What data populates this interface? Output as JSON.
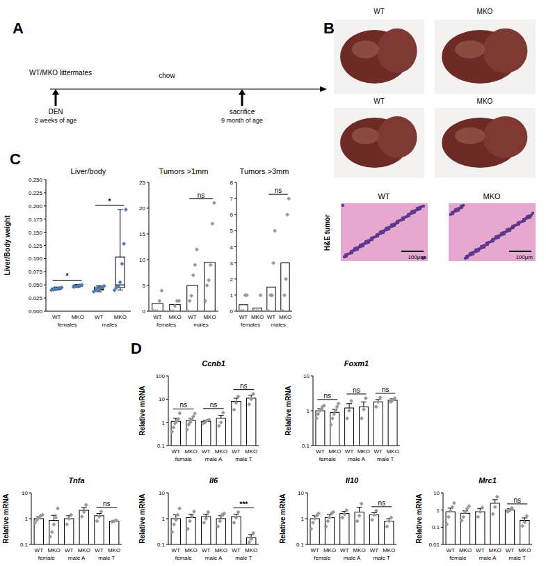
{
  "panel_labels": [
    "A",
    "B",
    "C",
    "D"
  ],
  "diagram": {
    "timeline": {
      "group_label": "WT/MKO littermates",
      "diet": "chow",
      "events": [
        {
          "label": "DEN",
          "time": "2 weeks of age"
        },
        {
          "label": "sacrifice",
          "time": "9 month of age"
        }
      ]
    }
  },
  "photos": {
    "liver": {
      "labels": [
        "WT",
        "MKO",
        "WT",
        "MKO"
      ]
    },
    "histology": {
      "row_label": "H&E tumor",
      "labels": [
        "WT",
        "MKO"
      ],
      "scale_bars": [
        "100μm",
        "100μm"
      ]
    }
  },
  "chart_data": [
    {
      "type": "box",
      "title": "Liver/body",
      "y_label": "Liver/Body weight",
      "categories": [
        "WT",
        "MKO",
        "WT",
        "MKO"
      ],
      "groups": [
        "females",
        "males"
      ],
      "significance": [
        "*",
        "*"
      ],
      "ylim": [
        0,
        0.25
      ],
      "yticks": [
        {
          "value": 0,
          "label": "0.000"
        },
        {
          "value": 0.025,
          "label": "0.025"
        },
        {
          "value": 0.05,
          "label": "0.050"
        },
        {
          "value": 0.075,
          "label": "0.075"
        },
        {
          "value": 0.1,
          "label": "0.100"
        },
        {
          "value": 0.125,
          "label": "0.125"
        },
        {
          "value": 0.15,
          "label": "0.150"
        },
        {
          "value": 0.175,
          "label": "0.175"
        },
        {
          "value": 0.2,
          "label": "0.200"
        },
        {
          "value": 0.225,
          "label": "0.225"
        },
        {
          "value": 0.25,
          "label": "0.250"
        }
      ],
      "boxes": [
        {
          "min": 0.04,
          "q1": 0.041,
          "median": 0.042,
          "q3": 0.044,
          "max": 0.046
        },
        {
          "min": 0.045,
          "q1": 0.047,
          "median": 0.048,
          "q3": 0.05,
          "max": 0.051
        },
        {
          "min": 0.037,
          "q1": 0.04,
          "median": 0.042,
          "q3": 0.046,
          "max": 0.048
        },
        {
          "min": 0.04,
          "q1": 0.045,
          "median": 0.05,
          "q3": 0.103,
          "max": 0.193
        }
      ],
      "points": [
        [
          0.04,
          0.041,
          0.042,
          0.043,
          0.044,
          0.045
        ],
        [
          0.046,
          0.047,
          0.048,
          0.049,
          0.05
        ],
        [
          0.037,
          0.04,
          0.042,
          0.044,
          0.046,
          0.048
        ],
        [
          0.04,
          0.045,
          0.048,
          0.055,
          0.09,
          0.128,
          0.193
        ]
      ],
      "color": "#4a7ebb",
      "marker": "diamond"
    },
    {
      "type": "bar",
      "title": "Tumors >1mm",
      "categories": [
        "WT",
        "MKO",
        "WT",
        "MKO"
      ],
      "groups": [
        "females",
        "males"
      ],
      "significance": [
        null,
        "ns"
      ],
      "ylim": [
        0,
        25
      ],
      "yticks": [
        0,
        5,
        10,
        15,
        20,
        25
      ],
      "values": [
        1.5,
        1.3,
        5,
        9.5
      ],
      "points": [
        [
          0,
          0,
          0,
          2,
          4
        ],
        [
          0,
          0,
          1,
          2,
          2
        ],
        [
          0,
          2,
          3,
          7,
          9,
          12
        ],
        [
          2,
          5,
          6,
          9,
          17,
          21
        ]
      ],
      "color": "#ffffff",
      "marker": "diamond"
    },
    {
      "type": "bar",
      "title": "Tumors >3mm",
      "categories": [
        "WT",
        "MKO",
        "WT",
        "MKO"
      ],
      "groups": [
        "females",
        "males"
      ],
      "significance": [
        null,
        "ns"
      ],
      "ylim": [
        0,
        8
      ],
      "yticks": [
        0,
        1,
        2,
        3,
        4,
        5,
        6,
        7,
        8
      ],
      "values": [
        0.4,
        0.2,
        1.5,
        3
      ],
      "points": [
        [
          0,
          0,
          0,
          1,
          1
        ],
        [
          0,
          0,
          0,
          1
        ],
        [
          0,
          0,
          1,
          1,
          3,
          5
        ],
        [
          0,
          0,
          1,
          2,
          6,
          7
        ]
      ],
      "color": "#ffffff",
      "marker": "diamond"
    },
    {
      "type": "bar",
      "title": "Ccnb1",
      "y_label": "Relative mRNA",
      "log": "y",
      "categories": [
        "WT",
        "MKO",
        "WT",
        "MKO",
        "WT",
        "MKO"
      ],
      "groups": [
        "female",
        "male A",
        "male T"
      ],
      "significance": [
        "ns",
        "ns",
        "ns"
      ],
      "ylim": [
        0.1,
        100
      ],
      "yticks": [
        0.1,
        1,
        10,
        100
      ],
      "values": [
        1.1,
        1.2,
        1.1,
        1.5,
        8,
        11
      ],
      "errors": [
        0.4,
        0.3,
        0.15,
        0.5,
        3,
        4
      ],
      "points": [
        [
          0.4,
          0.6,
          0.9,
          1.1,
          1.4,
          2.5
        ],
        [
          0.5,
          0.8,
          1.0,
          1.3,
          1.8,
          2.4
        ],
        [
          0.9,
          1.0,
          1.2,
          1.3
        ],
        [
          0.7,
          1.0,
          2.6
        ],
        [
          3.5,
          7,
          13
        ],
        [
          6,
          10,
          17
        ]
      ],
      "color": "#ffffff",
      "marker": "diamond"
    },
    {
      "type": "bar",
      "title": "Foxm1",
      "y_label": "Relative mRNA",
      "log": "y",
      "categories": [
        "WT",
        "MKO",
        "WT",
        "MKO",
        "WT",
        "MKO"
      ],
      "groups": [
        "female",
        "male A",
        "male T"
      ],
      "significance": [
        "ns",
        "ns",
        "ns"
      ],
      "ylim": [
        0.1,
        10
      ],
      "yticks": [
        0.1,
        1,
        10
      ],
      "values": [
        1.0,
        0.9,
        1.2,
        1.3,
        1.8,
        2.0
      ],
      "errors": [
        0.15,
        0.2,
        0.4,
        0.5,
        0.3,
        0.2
      ],
      "points": [
        [
          0.6,
          0.8,
          1.0,
          1.1,
          1.3,
          1.4
        ],
        [
          0.4,
          0.6,
          0.8,
          1.0,
          1.3,
          1.6
        ],
        [
          0.6,
          1.0,
          1.9
        ],
        [
          0.6,
          1.1,
          2.3
        ],
        [
          1.3,
          1.8,
          2.4
        ],
        [
          1.8,
          2.0,
          2.3
        ]
      ],
      "color": "#ffffff",
      "marker": "diamond"
    },
    {
      "type": "bar",
      "title": "Tnfa",
      "y_label": "Relative mRNA",
      "log": "y",
      "categories": [
        "WT",
        "MKO",
        "WT",
        "MKO",
        "WT",
        "MKO"
      ],
      "groups": [
        "female",
        "male A",
        "male T"
      ],
      "significance": [
        null,
        null,
        "ns"
      ],
      "ylim": [
        0.1,
        10
      ],
      "yticks": [
        0.1,
        1,
        10
      ],
      "values": [
        1.0,
        0.85,
        1.0,
        2.1,
        1.3,
        0.8
      ],
      "errors": [
        0.2,
        0.5,
        0.3,
        0.6,
        0.3,
        0.05
      ],
      "points": [
        [
          0.7,
          0.9,
          1.1,
          1.3,
          1.4
        ],
        [
          0.2,
          0.3,
          0.6,
          1.1,
          2.5
        ],
        [
          0.6,
          1.0,
          1.4
        ],
        [
          1.2,
          1.8,
          3.4
        ],
        [
          0.8,
          1.2,
          1.9
        ],
        [
          0.75,
          0.8,
          0.85
        ]
      ],
      "color": "#ffffff",
      "marker": "diamond"
    },
    {
      "type": "bar",
      "title": "Il6",
      "y_label": "Relative mRNA",
      "log": "y",
      "categories": [
        "WT",
        "MKO",
        "WT",
        "MKO",
        "WT",
        "MKO"
      ],
      "groups": [
        "female",
        "male A",
        "male T"
      ],
      "significance": [
        null,
        null,
        "***"
      ],
      "ylim": [
        0.1,
        10
      ],
      "yticks": [
        0.1,
        1,
        10
      ],
      "values": [
        1.0,
        1.1,
        1.2,
        1.0,
        1.2,
        0.18
      ],
      "errors": [
        0.4,
        0.4,
        0.3,
        0.3,
        0.3,
        0.06
      ],
      "points": [
        [
          0.3,
          0.6,
          0.9,
          1.4,
          2.5
        ],
        [
          0.4,
          0.8,
          1.2,
          1.9
        ],
        [
          0.7,
          1.0,
          1.8
        ],
        [
          0.5,
          0.8,
          1.4,
          1.6
        ],
        [
          0.7,
          1.1,
          1.8
        ],
        [
          0.12,
          0.16,
          0.28
        ]
      ],
      "color": "#ffffff",
      "marker": "diamond"
    },
    {
      "type": "bar",
      "title": "Il10",
      "y_label": "Relative mRNA",
      "log": "y",
      "categories": [
        "WT",
        "MKO",
        "WT",
        "MKO",
        "WT",
        "MKO"
      ],
      "groups": [
        "female",
        "male A",
        "male T"
      ],
      "significance": [
        null,
        null,
        "ns"
      ],
      "ylim": [
        0.1,
        10
      ],
      "yticks": [
        0.1,
        1,
        10
      ],
      "values": [
        1.0,
        1.1,
        1.6,
        1.8,
        1.4,
        0.8
      ],
      "errors": [
        0.3,
        0.3,
        0.3,
        1.0,
        0.3,
        0.2
      ],
      "points": [
        [
          0.4,
          0.7,
          1.0,
          1.3,
          1.6
        ],
        [
          0.5,
          0.8,
          1.1,
          1.6,
          1.8
        ],
        [
          1.1,
          1.5,
          2.1
        ],
        [
          0.8,
          1.3,
          3.8
        ],
        [
          0.9,
          1.4,
          2.0
        ],
        [
          0.5,
          0.8,
          1.1
        ]
      ],
      "color": "#ffffff",
      "marker": "diamond"
    },
    {
      "type": "bar",
      "title": "Mrc1",
      "y_label": "Relative mRNA",
      "log": "y",
      "categories": [
        "WT",
        "MKO",
        "WT",
        "MKO",
        "WT",
        "MKO"
      ],
      "groups": [
        "female",
        "male A",
        "male T"
      ],
      "significance": [
        null,
        null,
        "ns"
      ],
      "ylim": [
        0.01,
        10
      ],
      "yticks": [
        0.01,
        0.1,
        1,
        10
      ],
      "values": [
        0.8,
        0.65,
        0.8,
        2.5,
        1.0,
        0.25
      ],
      "errors": [
        0.5,
        0.25,
        0.4,
        1.5,
        0.2,
        0.1
      ],
      "points": [
        [
          0.15,
          0.4,
          0.9,
          1.5,
          2.6
        ],
        [
          0.25,
          0.4,
          0.8,
          1.2,
          1.7
        ],
        [
          0.4,
          0.8,
          1.4
        ],
        [
          0.6,
          1.5,
          6
        ],
        [
          0.8,
          1.0,
          1.3
        ],
        [
          0.12,
          0.2,
          0.45
        ]
      ],
      "color": "#ffffff",
      "marker": "diamond"
    }
  ]
}
